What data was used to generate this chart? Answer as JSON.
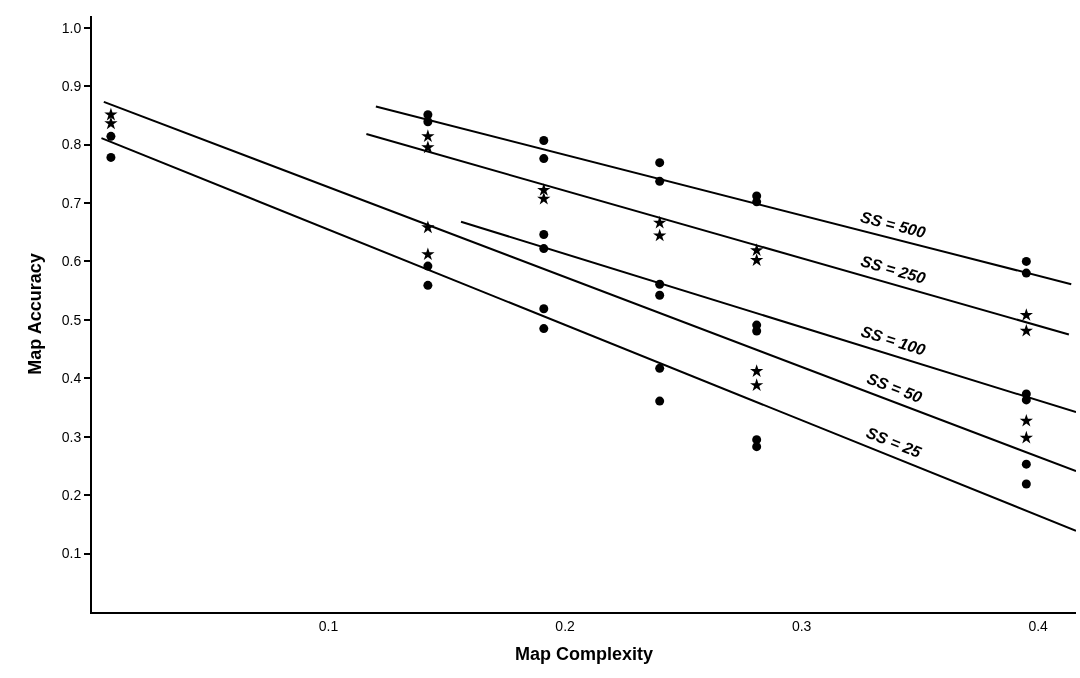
{
  "chart_data": {
    "type": "scatter",
    "xlabel": "Map Complexity",
    "ylabel": "Map Accuracy",
    "xlim": [
      0,
      0.416
    ],
    "ylim": [
      0,
      1.02
    ],
    "xticks": [
      0.1,
      0.2,
      0.3,
      0.4
    ],
    "yticks": [
      0.1,
      0.2,
      0.3,
      0.4,
      0.5,
      0.6,
      0.7,
      0.8,
      0.9,
      {
        "value": 1.0,
        "label": "1.0"
      }
    ],
    "grid": false,
    "legend": false,
    "series": [
      {
        "marker": "circle",
        "color": "#000000",
        "x": [
          0.008,
          0.008,
          0.142,
          0.142,
          0.142,
          0.142,
          0.191,
          0.191,
          0.191,
          0.191,
          0.191,
          0.191,
          0.24,
          0.24,
          0.24,
          0.24,
          0.24,
          0.24,
          0.281,
          0.281,
          0.281,
          0.281,
          0.281,
          0.281,
          0.395,
          0.395,
          0.395,
          0.395,
          0.395,
          0.395
        ],
        "values": [
          0.814,
          0.778,
          0.851,
          0.839,
          0.592,
          0.559,
          0.807,
          0.776,
          0.646,
          0.622,
          0.519,
          0.485,
          0.769,
          0.737,
          0.561,
          0.542,
          0.417,
          0.361,
          0.712,
          0.702,
          0.491,
          0.481,
          0.295,
          0.283,
          0.6,
          0.58,
          0.373,
          0.363,
          0.253,
          0.219
        ]
      },
      {
        "marker": "star",
        "color": "#000000",
        "x": [
          0.008,
          0.008,
          0.142,
          0.142,
          0.142,
          0.142,
          0.191,
          0.191,
          0.24,
          0.24,
          0.281,
          0.281,
          0.281,
          0.281,
          0.395,
          0.395,
          0.395,
          0.395
        ],
        "values": [
          0.851,
          0.836,
          0.814,
          0.795,
          0.658,
          0.612,
          0.722,
          0.707,
          0.666,
          0.644,
          0.619,
          0.602,
          0.412,
          0.388,
          0.508,
          0.481,
          0.327,
          0.298
        ]
      },
      {
        "type": "line",
        "name": "SS = 500",
        "marker": "none",
        "color": "#000000",
        "x": [
          0.12,
          0.414
        ],
        "values": [
          0.865,
          0.561
        ]
      },
      {
        "type": "line",
        "name": "SS = 250",
        "marker": "none",
        "color": "#000000",
        "x": [
          0.116,
          0.413
        ],
        "values": [
          0.818,
          0.475
        ]
      },
      {
        "type": "line",
        "name": "SS = 100",
        "marker": "none",
        "color": "#000000",
        "x": [
          0.156,
          0.416
        ],
        "values": [
          0.668,
          0.342
        ]
      },
      {
        "type": "line",
        "name": "SS = 50",
        "marker": "none",
        "color": "#000000",
        "x": [
          0.005,
          0.416
        ],
        "values": [
          0.873,
          0.241
        ]
      },
      {
        "type": "line",
        "name": "SS = 25",
        "marker": "none",
        "color": "#000000",
        "x": [
          0.004,
          0.416
        ],
        "values": [
          0.811,
          0.139
        ]
      }
    ]
  }
}
